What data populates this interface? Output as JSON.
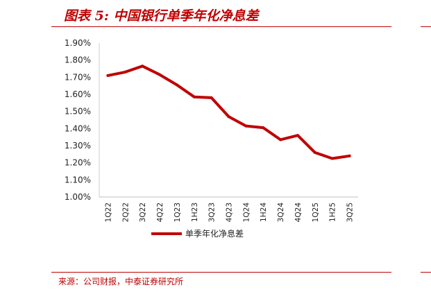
{
  "title": "图表 5:  中国银行单季年化净息差",
  "source": "来源：公司财报，中泰证券研究所",
  "chart_data": {
    "type": "line",
    "title": "",
    "xlabel": "",
    "ylabel": "",
    "ylim": [
      1.0,
      1.9
    ],
    "y_tick_labels": [
      "1.90%",
      "1.80%",
      "1.70%",
      "1.60%",
      "1.50%",
      "1.40%",
      "1.30%",
      "1.20%",
      "1.10%",
      "1.00%"
    ],
    "categories": [
      "1Q22",
      "2Q22",
      "3Q22",
      "4Q22",
      "1Q23",
      "1H23",
      "3Q23",
      "4Q23",
      "1Q24",
      "1H24",
      "3Q24",
      "4Q24",
      "1Q25",
      "1H25",
      "3Q25"
    ],
    "series": [
      {
        "name": "单季年化净息差",
        "color": "#c00000",
        "values": [
          1.71,
          1.73,
          1.765,
          1.715,
          1.655,
          1.585,
          1.58,
          1.47,
          1.415,
          1.405,
          1.335,
          1.36,
          1.26,
          1.225,
          1.24
        ]
      }
    ],
    "grid": false,
    "legend_position": "bottom"
  }
}
